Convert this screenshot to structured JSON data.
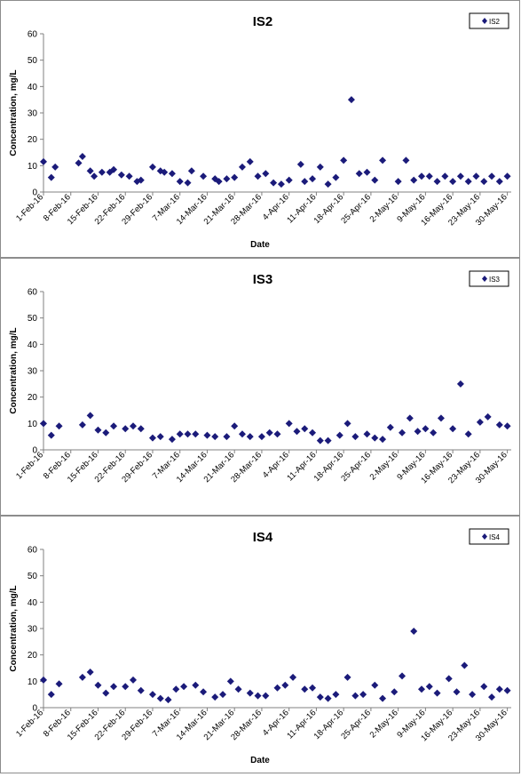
{
  "colors": {
    "marker": "#1b1b7a",
    "axis": "#808080",
    "border": "#8c8c8c",
    "background": "#ffffff"
  },
  "chart_data": [
    {
      "type": "scatter",
      "title": "IS2",
      "xlabel": "Date",
      "ylabel": "Concentration, mg/L",
      "ylim": [
        0,
        60
      ],
      "yticks": [
        0,
        10,
        20,
        30,
        40,
        50,
        60
      ],
      "xlim": [
        "2016-02-01",
        "2016-05-31"
      ],
      "xticks": [
        "1-Feb-16",
        "8-Feb-16",
        "15-Feb-16",
        "22-Feb-16",
        "29-Feb-16",
        "7-Mar-16",
        "14-Mar-16",
        "21-Mar-16",
        "28-Mar-16",
        "4-Apr-16",
        "11-Apr-16",
        "18-Apr-16",
        "25-Apr-16",
        "2-May-16",
        "9-May-16",
        "16-May-16",
        "23-May-16",
        "30-May-16"
      ],
      "grid": false,
      "legend_position": "top-right",
      "series": [
        {
          "name": "IS2",
          "marker": "diamond",
          "x": [
            "2016-02-01",
            "2016-02-03",
            "2016-02-04",
            "2016-02-10",
            "2016-02-11",
            "2016-02-13",
            "2016-02-14",
            "2016-02-16",
            "2016-02-18",
            "2016-02-19",
            "2016-02-21",
            "2016-02-23",
            "2016-02-25",
            "2016-02-26",
            "2016-02-29",
            "2016-03-02",
            "2016-03-03",
            "2016-03-05",
            "2016-03-07",
            "2016-03-09",
            "2016-03-10",
            "2016-03-13",
            "2016-03-16",
            "2016-03-17",
            "2016-03-19",
            "2016-03-21",
            "2016-03-23",
            "2016-03-25",
            "2016-03-27",
            "2016-03-29",
            "2016-03-31",
            "2016-04-02",
            "2016-04-04",
            "2016-04-07",
            "2016-04-08",
            "2016-04-10",
            "2016-04-12",
            "2016-04-14",
            "2016-04-16",
            "2016-04-18",
            "2016-04-20",
            "2016-04-22",
            "2016-04-24",
            "2016-04-26",
            "2016-04-28",
            "2016-05-02",
            "2016-05-04",
            "2016-05-06",
            "2016-05-08",
            "2016-05-10",
            "2016-05-12",
            "2016-05-14",
            "2016-05-16",
            "2016-05-18",
            "2016-05-20",
            "2016-05-22",
            "2016-05-24",
            "2016-05-26",
            "2016-05-28",
            "2016-05-30"
          ],
          "y": [
            11.5,
            5.5,
            9.5,
            11,
            13.5,
            8,
            6,
            7.5,
            7.5,
            8.5,
            6.5,
            6,
            4,
            4.5,
            9.5,
            8,
            7.5,
            7,
            4,
            3.5,
            8,
            6,
            5,
            4,
            5,
            5.5,
            9.5,
            11.5,
            6,
            7,
            3.5,
            3,
            4.5,
            10.5,
            4,
            5,
            9.5,
            3,
            5.5,
            12,
            35,
            7,
            7.5,
            4.5,
            12,
            4,
            12,
            4.5,
            6,
            6,
            4,
            6,
            4,
            6,
            4,
            6,
            4,
            6,
            4,
            6
          ]
        }
      ]
    },
    {
      "type": "scatter",
      "title": "IS3",
      "xlabel": "",
      "ylabel": "Concentration, mg/L",
      "ylim": [
        0,
        60
      ],
      "yticks": [
        0,
        10,
        20,
        30,
        40,
        50,
        60
      ],
      "xlim": [
        "2016-02-01",
        "2016-05-31"
      ],
      "xticks": [
        "1-Feb-16",
        "8-Feb-16",
        "15-Feb-16",
        "22-Feb-16",
        "29-Feb-16",
        "7-Mar-16",
        "14-Mar-16",
        "21-Mar-16",
        "28-Mar-16",
        "4-Apr-16",
        "11-Apr-16",
        "18-Apr-16",
        "25-Apr-16",
        "2-May-16",
        "9-May-16",
        "16-May-16",
        "23-May-16",
        "30-May-16"
      ],
      "grid": false,
      "legend_position": "top-right",
      "series": [
        {
          "name": "IS3",
          "marker": "diamond",
          "x": [
            "2016-02-01",
            "2016-02-03",
            "2016-02-05",
            "2016-02-11",
            "2016-02-13",
            "2016-02-15",
            "2016-02-17",
            "2016-02-19",
            "2016-02-22",
            "2016-02-24",
            "2016-02-26",
            "2016-02-29",
            "2016-03-02",
            "2016-03-05",
            "2016-03-07",
            "2016-03-09",
            "2016-03-11",
            "2016-03-14",
            "2016-03-16",
            "2016-03-19",
            "2016-03-21",
            "2016-03-23",
            "2016-03-25",
            "2016-03-28",
            "2016-03-30",
            "2016-04-01",
            "2016-04-04",
            "2016-04-06",
            "2016-04-08",
            "2016-04-10",
            "2016-04-12",
            "2016-04-14",
            "2016-04-17",
            "2016-04-19",
            "2016-04-21",
            "2016-04-24",
            "2016-04-26",
            "2016-04-28",
            "2016-04-30",
            "2016-05-03",
            "2016-05-05",
            "2016-05-07",
            "2016-05-09",
            "2016-05-11",
            "2016-05-13",
            "2016-05-16",
            "2016-05-18",
            "2016-05-20",
            "2016-05-23",
            "2016-05-25",
            "2016-05-28",
            "2016-05-30"
          ],
          "y": [
            10,
            5.5,
            9,
            9.5,
            13,
            7.5,
            6.5,
            9,
            8,
            9,
            8,
            4.5,
            5,
            4,
            6,
            6,
            6,
            5.5,
            5,
            5,
            9,
            6,
            5,
            5,
            6.5,
            6,
            10,
            7,
            8,
            6.5,
            3.5,
            3.5,
            5.5,
            10,
            5,
            6,
            4.5,
            4,
            8.5,
            6.5,
            12,
            7,
            8,
            6.5,
            12,
            8,
            25,
            6,
            10.5,
            12.5,
            9.5,
            9
          ]
        }
      ]
    },
    {
      "type": "scatter",
      "title": "IS4",
      "xlabel": "Date",
      "ylabel": "Concentration, mg/L",
      "ylim": [
        0,
        60
      ],
      "yticks": [
        0,
        10,
        20,
        30,
        40,
        50,
        60
      ],
      "xlim": [
        "2016-02-01",
        "2016-05-31"
      ],
      "xticks": [
        "1-Feb-16",
        "8-Feb-16",
        "15-Feb-16",
        "22-Feb-16",
        "29-Feb-16",
        "7-Mar-16",
        "14-Mar-16",
        "21-Mar-16",
        "28-Mar-16",
        "4-Apr-16",
        "11-Apr-16",
        "18-Apr-16",
        "25-Apr-16",
        "2-May-16",
        "9-May-16",
        "16-May-16",
        "23-May-16",
        "30-May-16"
      ],
      "grid": false,
      "legend_position": "top-right",
      "series": [
        {
          "name": "IS4",
          "marker": "diamond",
          "x": [
            "2016-02-01",
            "2016-02-03",
            "2016-02-05",
            "2016-02-11",
            "2016-02-13",
            "2016-02-15",
            "2016-02-17",
            "2016-02-19",
            "2016-02-22",
            "2016-02-24",
            "2016-02-26",
            "2016-02-29",
            "2016-03-02",
            "2016-03-04",
            "2016-03-06",
            "2016-03-08",
            "2016-03-11",
            "2016-03-13",
            "2016-03-16",
            "2016-03-18",
            "2016-03-20",
            "2016-03-22",
            "2016-03-25",
            "2016-03-27",
            "2016-03-29",
            "2016-04-01",
            "2016-04-03",
            "2016-04-05",
            "2016-04-08",
            "2016-04-10",
            "2016-04-12",
            "2016-04-14",
            "2016-04-16",
            "2016-04-19",
            "2016-04-21",
            "2016-04-23",
            "2016-04-26",
            "2016-04-28",
            "2016-05-01",
            "2016-05-03",
            "2016-05-06",
            "2016-05-08",
            "2016-05-10",
            "2016-05-12",
            "2016-05-15",
            "2016-05-17",
            "2016-05-19",
            "2016-05-21",
            "2016-05-24",
            "2016-05-26",
            "2016-05-28",
            "2016-05-30"
          ],
          "y": [
            10.5,
            5,
            9,
            11.5,
            13.5,
            8.5,
            5.5,
            8,
            8,
            10.5,
            6.5,
            5,
            3.5,
            3,
            7,
            8,
            8.5,
            6,
            4,
            5,
            10,
            7,
            5.5,
            4.5,
            4.5,
            7.5,
            8.5,
            11.5,
            7,
            7.5,
            4,
            3.5,
            5,
            11.5,
            4.5,
            5,
            8.5,
            3.5,
            6,
            12,
            29,
            7,
            8,
            5.5,
            11,
            6,
            16,
            5,
            8,
            4,
            7,
            6.5
          ]
        }
      ]
    }
  ]
}
